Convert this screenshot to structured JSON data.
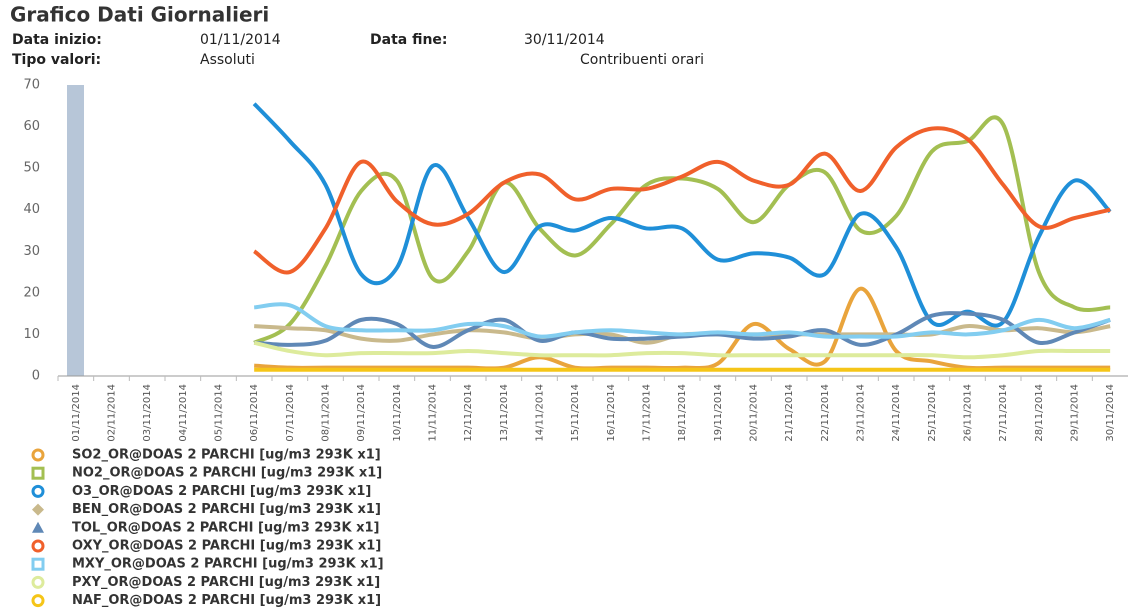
{
  "header": {
    "title": "Grafico Dati Giornalieri",
    "start_label": "Data inizio:",
    "start_value": "01/11/2014",
    "end_label": "Data fine:",
    "end_value": "30/11/2014",
    "type_label": "Tipo valori:",
    "type_value": "Assoluti",
    "extra": "Contribuenti orari"
  },
  "chart_data": {
    "type": "line",
    "categories": [
      "01/11/2014",
      "02/11/2014",
      "03/11/2014",
      "04/11/2014",
      "05/11/2014",
      "06/11/2014",
      "07/11/2014",
      "08/11/2014",
      "09/11/2014",
      "10/11/2014",
      "11/11/2014",
      "12/11/2014",
      "13/11/2014",
      "14/11/2014",
      "15/11/2014",
      "16/11/2014",
      "17/11/2014",
      "18/11/2014",
      "19/11/2014",
      "20/11/2014",
      "21/11/2014",
      "22/11/2014",
      "23/11/2014",
      "24/11/2014",
      "25/11/2014",
      "26/11/2014",
      "27/11/2014",
      "28/11/2014",
      "29/11/2014",
      "30/11/2014"
    ],
    "ylim": [
      0,
      70
    ],
    "yticks": [
      0,
      10,
      20,
      30,
      40,
      50,
      60,
      70
    ],
    "grid": false,
    "series": [
      {
        "name": "SO2_OR@DOAS 2 PARCHI [ug/m3 293K x1]",
        "color": "#e9a43c",
        "marker": "circle",
        "values": [
          null,
          null,
          null,
          null,
          null,
          2.5,
          2,
          2,
          2,
          2,
          2,
          2,
          2,
          4.5,
          2,
          2,
          2,
          2,
          3,
          12.5,
          6.5,
          3.5,
          21,
          6,
          3.5,
          2,
          2,
          2,
          2,
          2
        ]
      },
      {
        "name": "NO2_OR@DOAS 2 PARCHI [ug/m3 293K x1]",
        "color": "#a3bf52",
        "marker": "square",
        "values": [
          null,
          null,
          null,
          null,
          null,
          8,
          12.5,
          26.5,
          44.5,
          47,
          23.5,
          30,
          46.5,
          35.5,
          29,
          36.5,
          46,
          47.5,
          45,
          37,
          46,
          49,
          35,
          38.5,
          54,
          56.5,
          60.5,
          25,
          16.5,
          16.5
        ]
      },
      {
        "name": "O3_OR@DOAS 2 PARCHI [ug/m3 293K x1]",
        "color": "#1f8fd8",
        "marker": "circle",
        "values": [
          null,
          null,
          null,
          null,
          null,
          65.5,
          56.5,
          46,
          24.5,
          26,
          50.5,
          38,
          25,
          36,
          35,
          38,
          35.5,
          35.5,
          28,
          29.5,
          28.5,
          24.5,
          39,
          31,
          13,
          15.5,
          13,
          33.5,
          47,
          39.5
        ]
      },
      {
        "name": "BEN_OR@DOAS 2 PARCHI [ug/m3 293K x1]",
        "color": "#c9b98c",
        "marker": "diamond",
        "values": [
          null,
          null,
          null,
          null,
          null,
          12,
          11.5,
          11,
          9,
          8.5,
          10,
          11,
          10.5,
          9,
          10,
          10,
          8,
          10,
          10,
          10,
          10,
          10,
          10,
          10,
          10,
          12,
          11,
          11.5,
          10.5,
          12
        ]
      },
      {
        "name": "TOL_OR@DOAS 2 PARCHI [ug/m3 293K x1]",
        "color": "#5f88b6",
        "marker": "triangle",
        "values": [
          null,
          null,
          null,
          null,
          null,
          8,
          7.5,
          8.5,
          13.5,
          12.5,
          7,
          11,
          13.5,
          8.5,
          10.5,
          9,
          9,
          9.5,
          10,
          9,
          9.5,
          11,
          7.5,
          10,
          14.5,
          15,
          13.5,
          8,
          10.5,
          13.5
        ]
      },
      {
        "name": "OXY_OR@DOAS 2 PARCHI [ug/m3 293K x1]",
        "color": "#f0602b",
        "marker": "circle",
        "values": [
          null,
          null,
          null,
          null,
          null,
          30,
          25,
          35.5,
          51.5,
          42,
          36.5,
          39,
          46.5,
          48.5,
          42.5,
          45,
          45,
          48,
          51.5,
          47,
          46,
          53.5,
          44.5,
          55,
          59.5,
          57,
          46,
          36,
          38,
          40
        ]
      },
      {
        "name": "MXY_OR@DOAS 2 PARCHI [ug/m3 293K x1]",
        "color": "#82cdf0",
        "marker": "square",
        "values": [
          null,
          null,
          null,
          null,
          null,
          16.5,
          17,
          12,
          11,
          11,
          11,
          12.5,
          12,
          9.5,
          10.5,
          11,
          10.5,
          10,
          10.5,
          10,
          10.5,
          9.5,
          9.5,
          9.5,
          10.5,
          10,
          11,
          13.5,
          11.5,
          13.5
        ]
      },
      {
        "name": "PXY_OR@DOAS 2 PARCHI [ug/m3 293K x1]",
        "color": "#ddeb9c",
        "marker": "circle",
        "values": [
          null,
          null,
          null,
          null,
          null,
          8,
          6,
          5,
          5.5,
          5.5,
          5.5,
          6,
          5.5,
          5,
          5,
          5,
          5.5,
          5.5,
          5,
          5,
          5,
          5,
          5,
          5,
          5,
          4.5,
          5,
          6,
          6,
          6
        ]
      },
      {
        "name": "NAF_OR@DOAS 2 PARCHI [ug/m3 293K x1]",
        "color": "#f5c518",
        "marker": "circle",
        "values": [
          null,
          null,
          null,
          null,
          null,
          1.5,
          1.5,
          1.5,
          1.5,
          1.5,
          1.5,
          1.5,
          1.5,
          1.5,
          1.5,
          1.5,
          1.5,
          1.5,
          1.5,
          1.5,
          1.5,
          1.5,
          1.5,
          1.5,
          1.5,
          1.5,
          1.5,
          1.5,
          1.5,
          1.5
        ]
      }
    ]
  }
}
